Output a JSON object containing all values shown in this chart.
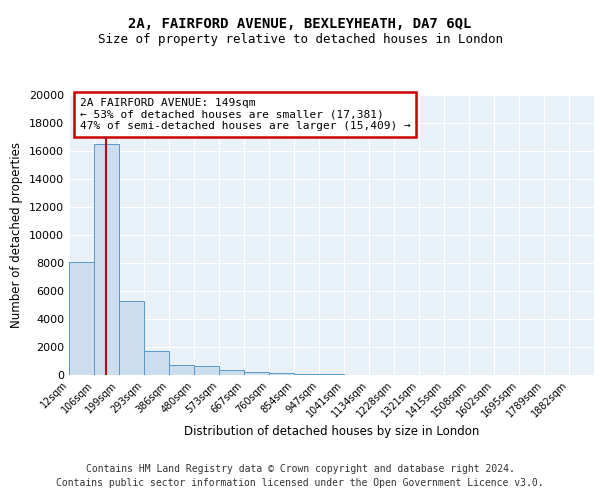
{
  "title": "2A, FAIRFORD AVENUE, BEXLEYHEATH, DA7 6QL",
  "subtitle": "Size of property relative to detached houses in London",
  "xlabel": "Distribution of detached houses by size in London",
  "ylabel": "Number of detached properties",
  "bin_labels": [
    "12sqm",
    "106sqm",
    "199sqm",
    "293sqm",
    "386sqm",
    "480sqm",
    "573sqm",
    "667sqm",
    "760sqm",
    "854sqm",
    "947sqm",
    "1041sqm",
    "1134sqm",
    "1228sqm",
    "1321sqm",
    "1415sqm",
    "1508sqm",
    "1602sqm",
    "1695sqm",
    "1789sqm",
    "1882sqm"
  ],
  "bin_edges": [
    12,
    106,
    199,
    293,
    386,
    480,
    573,
    667,
    760,
    854,
    947,
    1041,
    1134,
    1228,
    1321,
    1415,
    1508,
    1602,
    1695,
    1789,
    1882
  ],
  "bar_values": [
    8100,
    16500,
    5300,
    1700,
    700,
    650,
    380,
    200,
    130,
    70,
    45,
    25,
    18,
    12,
    9,
    7,
    5,
    4,
    3,
    2
  ],
  "bar_color": "#ccdded",
  "bar_edge_color": "#5599cc",
  "bg_color": "#e8f0f8",
  "grid_color": "#ffffff",
  "red_line_x": 149,
  "red_line_color": "#cc0000",
  "annotation_text": "2A FAIRFORD AVENUE: 149sqm\n← 53% of detached houses are smaller (17,381)\n47% of semi-detached houses are larger (15,409) →",
  "annotation_box_color": "#cc0000",
  "ylim": [
    0,
    20000
  ],
  "yticks": [
    0,
    2000,
    4000,
    6000,
    8000,
    10000,
    12000,
    14000,
    16000,
    18000,
    20000
  ],
  "footer_line1": "Contains HM Land Registry data © Crown copyright and database right 2024.",
  "footer_line2": "Contains public sector information licensed under the Open Government Licence v3.0.",
  "title_fontsize": 10,
  "subtitle_fontsize": 9,
  "footer_fontsize": 7
}
